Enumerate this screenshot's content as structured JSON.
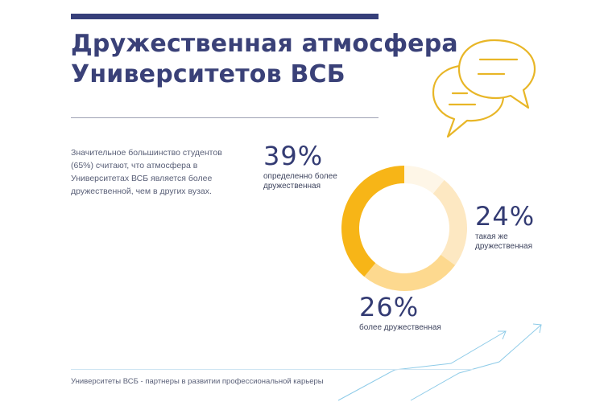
{
  "title_lines": [
    "Дружественная атмосфера",
    "Университетов ВСБ"
  ],
  "intro_text": "Значительное большинство студентов (65%) считают, что атмосфера в Университетах ВСБ является более дружественной, чем в других вузах.",
  "footer_text": "Университеты ВСБ - партнеры в развитии профессиональной карьеры",
  "colors": {
    "navy": "#363f7a",
    "accent_yellow": "#e8b627",
    "arrow_blue": "#8ecbe8"
  },
  "chart_data": {
    "type": "pie",
    "donut": true,
    "categories": [
      "определенно более дружественная",
      "такая же дружественная",
      "более дружественная",
      ""
    ],
    "values": [
      39,
      24,
      26,
      11
    ],
    "value_labels": [
      "39%",
      "24%",
      "26%",
      ""
    ],
    "colors": [
      "#f7b517",
      "#fde8c2",
      "#fdd98f",
      "#fef6e7"
    ],
    "legend": "none"
  }
}
